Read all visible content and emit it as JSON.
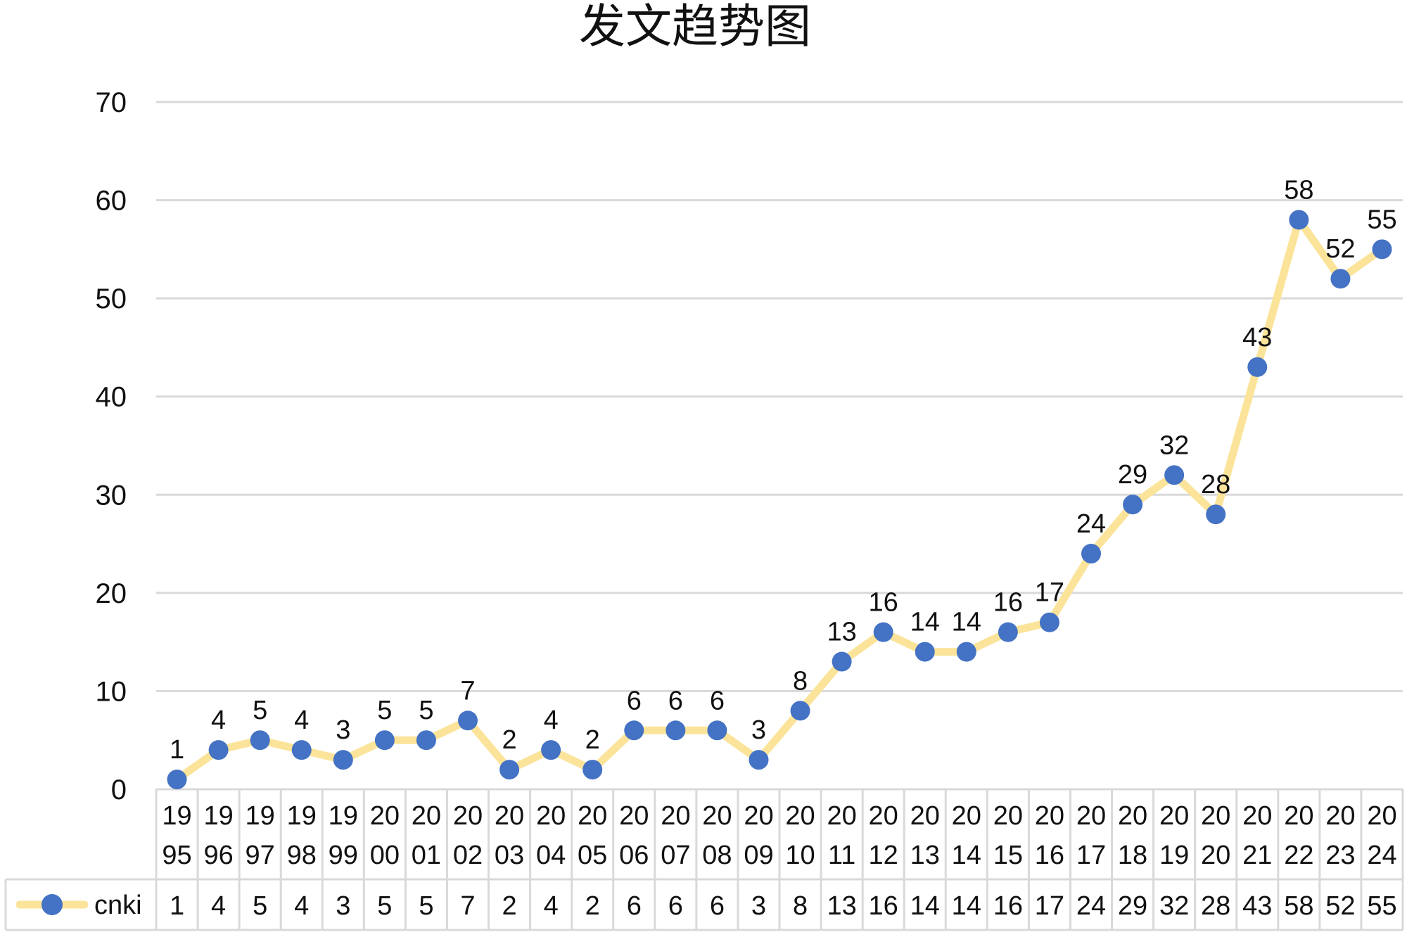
{
  "chart_data": {
    "type": "line",
    "title": "发文趋势图",
    "categories": [
      "1995",
      "1996",
      "1997",
      "1998",
      "1999",
      "2000",
      "2001",
      "2002",
      "2003",
      "2004",
      "2005",
      "2006",
      "2007",
      "2008",
      "2009",
      "2010",
      "2011",
      "2012",
      "2013",
      "2014",
      "2015",
      "2016",
      "2017",
      "2018",
      "2019",
      "2020",
      "2021",
      "2022",
      "2023",
      "2024"
    ],
    "series": [
      {
        "name": "cnki",
        "values": [
          1,
          4,
          5,
          4,
          3,
          5,
          5,
          7,
          2,
          4,
          2,
          6,
          6,
          6,
          3,
          8,
          13,
          16,
          14,
          14,
          16,
          17,
          24,
          29,
          32,
          28,
          43,
          58,
          52,
          55
        ]
      }
    ],
    "ylim": [
      0,
      70
    ],
    "yticks": [
      0,
      10,
      20,
      30,
      40,
      50,
      60,
      70
    ],
    "grid": true,
    "legend": "data-table-left",
    "data_labels": true,
    "data_table": true,
    "colors": {
      "line": "#FBE49A",
      "marker": "#4472C4",
      "grid": "#D9D9D9",
      "table_border": "#D9D9D9"
    }
  }
}
